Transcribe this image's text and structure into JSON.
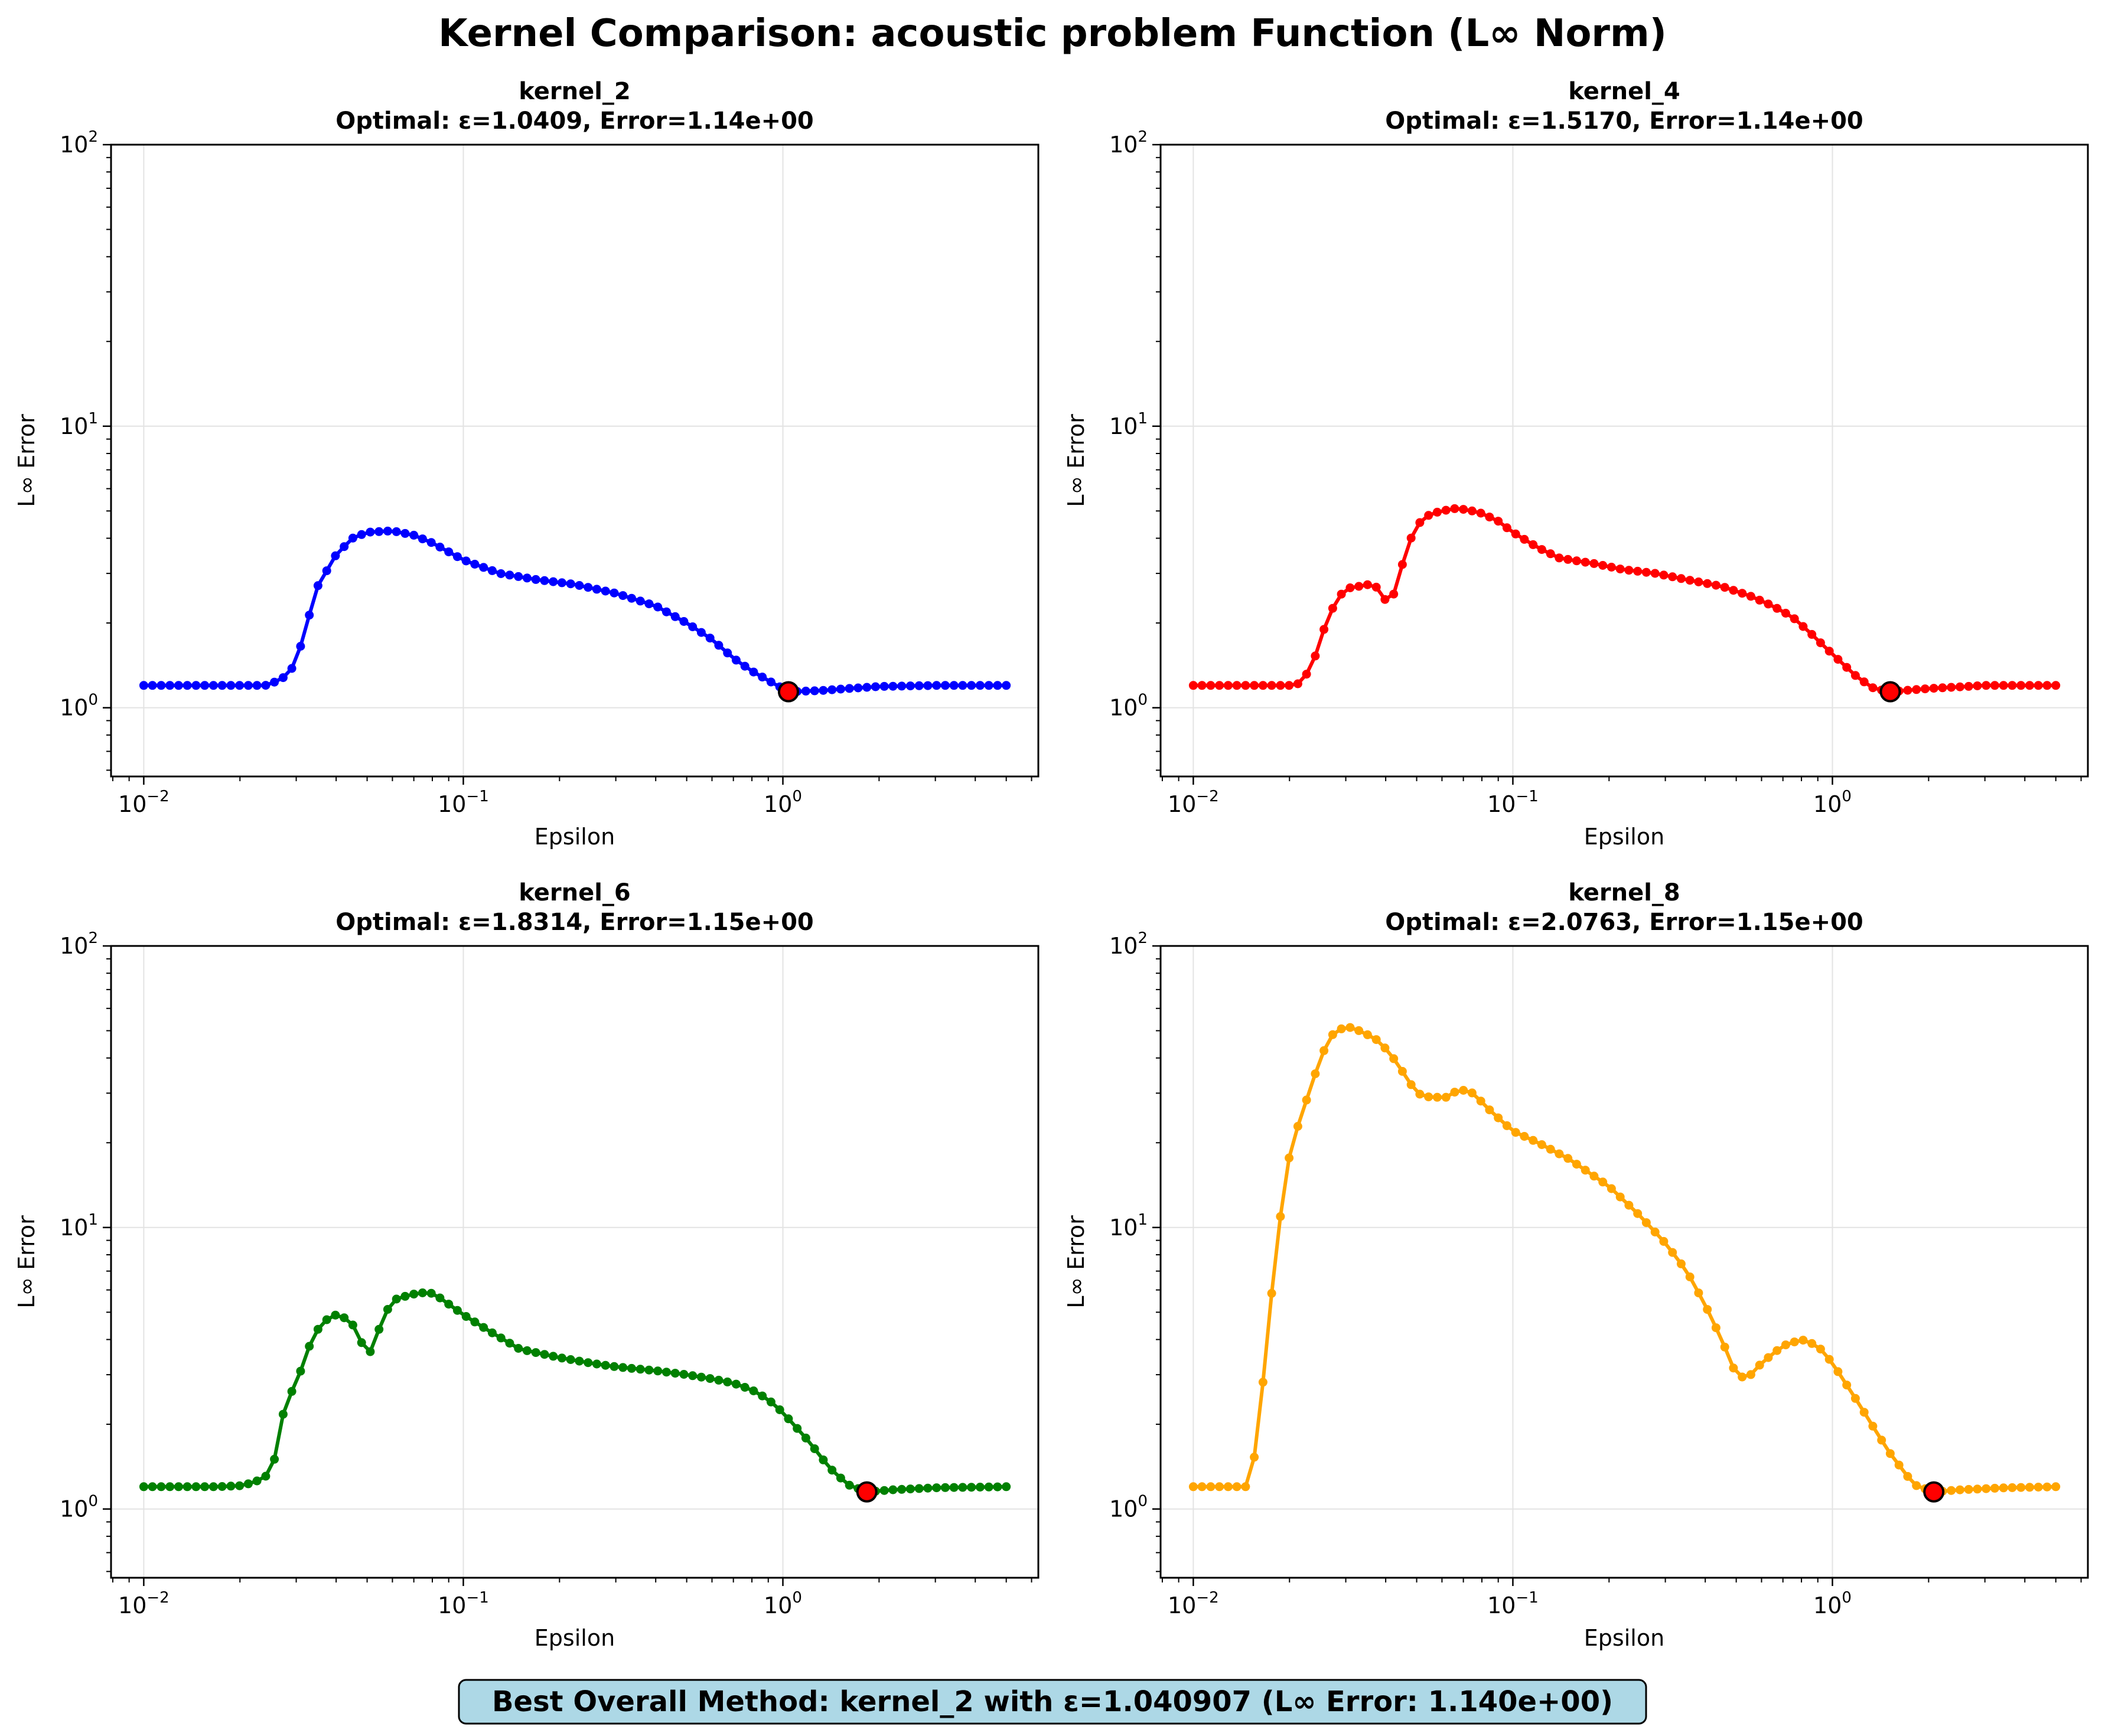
{
  "figure": {
    "title": "Kernel Comparison: acoustic problem Function (L∞ Norm)",
    "footer": "Best Overall Method: kernel_2 with ε=1.040907 (L∞ Error: 1.140e+00)",
    "colors": {
      "footer_bg": "#add8e6",
      "optimal_marker": "#ff0000",
      "grid": "#e3e3e3"
    }
  },
  "chart_data": [
    {
      "type": "line",
      "title": "kernel_2",
      "subtitle": "Optimal: ε=1.0409, Error=1.14e+00",
      "xlabel": "Epsilon",
      "ylabel": "L∞ Error",
      "xscale": "log",
      "yscale": "log",
      "xlim": [
        0.0079,
        6.3
      ],
      "ylim": [
        0.57,
        100
      ],
      "xticks": [
        0.01,
        0.1,
        1
      ],
      "xtick_labels": [
        [
          "10",
          "−2"
        ],
        [
          "10",
          "−1"
        ],
        [
          "10",
          "0"
        ]
      ],
      "yticks": [
        1,
        10,
        100
      ],
      "ytick_labels": [
        [
          "10",
          "0"
        ],
        [
          "10",
          "1"
        ],
        [
          "10",
          "2"
        ]
      ],
      "grid": true,
      "color": "#0000ff",
      "optimal": {
        "x": 1.0409,
        "y": 1.14
      },
      "series": [
        {
          "x_range": [
            0.01,
            5.0
          ],
          "x": [
            0.01,
            0.0124,
            0.0155,
            0.0193,
            0.024,
            0.026,
            0.028,
            0.03,
            0.032,
            0.035,
            0.04,
            0.045,
            0.05,
            0.06,
            0.07,
            0.08,
            0.1,
            0.13,
            0.17,
            0.22,
            0.3,
            0.4,
            0.5,
            0.6,
            0.7,
            0.8,
            0.9,
            1.0409,
            1.3,
            1.6,
            2.0,
            3.0,
            5.0
          ],
          "y": [
            1.2,
            1.2,
            1.2,
            1.2,
            1.2,
            1.24,
            1.3,
            1.45,
            1.9,
            2.7,
            3.5,
            4.0,
            4.2,
            4.25,
            4.1,
            3.85,
            3.35,
            3.0,
            2.85,
            2.75,
            2.55,
            2.3,
            2.0,
            1.75,
            1.5,
            1.35,
            1.25,
            1.14,
            1.15,
            1.17,
            1.19,
            1.2,
            1.2
          ]
        }
      ]
    },
    {
      "type": "line",
      "title": "kernel_4",
      "subtitle": "Optimal: ε=1.5170, Error=1.14e+00",
      "xlabel": "Epsilon",
      "ylabel": "L∞ Error",
      "xscale": "log",
      "yscale": "log",
      "xlim": [
        0.0079,
        6.3
      ],
      "ylim": [
        0.57,
        100
      ],
      "xticks": [
        0.01,
        0.1,
        1
      ],
      "xtick_labels": [
        [
          "10",
          "−2"
        ],
        [
          "10",
          "−1"
        ],
        [
          "10",
          "0"
        ]
      ],
      "yticks": [
        1,
        10,
        100
      ],
      "ytick_labels": [
        [
          "10",
          "0"
        ],
        [
          "10",
          "1"
        ],
        [
          "10",
          "2"
        ]
      ],
      "grid": true,
      "color": "#ff0000",
      "optimal": {
        "x": 1.517,
        "y": 1.14
      },
      "series": [
        {
          "x_range": [
            0.01,
            5.0
          ],
          "x": [
            0.01,
            0.013,
            0.016,
            0.02,
            0.0215,
            0.023,
            0.0245,
            0.026,
            0.028,
            0.03,
            0.033,
            0.036,
            0.038,
            0.04,
            0.042,
            0.045,
            0.048,
            0.052,
            0.056,
            0.06,
            0.066,
            0.072,
            0.08,
            0.09,
            0.1,
            0.12,
            0.14,
            0.18,
            0.22,
            0.28,
            0.35,
            0.45,
            0.55,
            0.65,
            0.75,
            0.85,
            1.0,
            1.2,
            1.35,
            1.517,
            2.0,
            3.0,
            5.0
          ],
          "y": [
            1.2,
            1.2,
            1.2,
            1.2,
            1.22,
            1.35,
            1.6,
            2.0,
            2.4,
            2.65,
            2.7,
            2.75,
            2.65,
            2.4,
            2.45,
            3.2,
            4.0,
            4.7,
            4.9,
            5.0,
            5.1,
            5.05,
            4.9,
            4.6,
            4.2,
            3.7,
            3.4,
            3.25,
            3.1,
            3.0,
            2.85,
            2.7,
            2.5,
            2.3,
            2.1,
            1.85,
            1.55,
            1.28,
            1.17,
            1.14,
            1.17,
            1.2,
            1.2
          ]
        }
      ]
    },
    {
      "type": "line",
      "title": "kernel_6",
      "subtitle": "Optimal: ε=1.8314, Error=1.15e+00",
      "xlabel": "Epsilon",
      "ylabel": "L∞ Error",
      "xscale": "log",
      "yscale": "log",
      "xlim": [
        0.0079,
        6.3
      ],
      "ylim": [
        0.57,
        100
      ],
      "xticks": [
        0.01,
        0.1,
        1
      ],
      "xtick_labels": [
        [
          "10",
          "−2"
        ],
        [
          "10",
          "−1"
        ],
        [
          "10",
          "0"
        ]
      ],
      "yticks": [
        1,
        10,
        100
      ],
      "ytick_labels": [
        [
          "10",
          "0"
        ],
        [
          "10",
          "1"
        ],
        [
          "10",
          "2"
        ]
      ],
      "grid": true,
      "color": "#008000",
      "optimal": {
        "x": 1.8314,
        "y": 1.15
      },
      "series": [
        {
          "x_range": [
            0.01,
            5.0
          ],
          "x": [
            0.01,
            0.013,
            0.017,
            0.02,
            0.022,
            0.024,
            0.0255,
            0.027,
            0.029,
            0.031,
            0.033,
            0.036,
            0.04,
            0.044,
            0.047,
            0.05,
            0.053,
            0.057,
            0.062,
            0.07,
            0.078,
            0.085,
            0.1,
            0.12,
            0.15,
            0.2,
            0.25,
            0.3,
            0.4,
            0.5,
            0.6,
            0.7,
            0.8,
            0.9,
            1.0,
            1.2,
            1.4,
            1.6,
            1.8314,
            2.2,
            3.0,
            5.0
          ],
          "y": [
            1.2,
            1.2,
            1.2,
            1.21,
            1.24,
            1.3,
            1.45,
            2.1,
            2.6,
            3.1,
            3.8,
            4.6,
            4.9,
            4.7,
            4.2,
            3.4,
            4.0,
            5.0,
            5.6,
            5.8,
            5.9,
            5.6,
            4.9,
            4.3,
            3.7,
            3.45,
            3.3,
            3.2,
            3.1,
            3.0,
            2.9,
            2.8,
            2.65,
            2.45,
            2.2,
            1.75,
            1.4,
            1.22,
            1.15,
            1.17,
            1.19,
            1.2
          ]
        }
      ]
    },
    {
      "type": "line",
      "title": "kernel_8",
      "subtitle": "Optimal: ε=2.0763, Error=1.15e+00",
      "xlabel": "Epsilon",
      "ylabel": "L∞ Error",
      "xscale": "log",
      "yscale": "log",
      "xlim": [
        0.0079,
        6.3
      ],
      "ylim": [
        0.57,
        100
      ],
      "xticks": [
        0.01,
        0.1,
        1
      ],
      "xtick_labels": [
        [
          "10",
          "−2"
        ],
        [
          "10",
          "−1"
        ],
        [
          "10",
          "0"
        ]
      ],
      "yticks": [
        1,
        10,
        100
      ],
      "ytick_labels": [
        [
          "10",
          "0"
        ],
        [
          "10",
          "1"
        ],
        [
          "10",
          "2"
        ]
      ],
      "grid": true,
      "color": "#ffa500",
      "optimal": {
        "x": 2.0763,
        "y": 1.15
      },
      "series": [
        {
          "x_range": [
            0.01,
            5.0
          ],
          "x": [
            0.01,
            0.012,
            0.014,
            0.015,
            0.016,
            0.017,
            0.018,
            0.019,
            0.02,
            0.0215,
            0.023,
            0.025,
            0.027,
            0.03,
            0.033,
            0.037,
            0.041,
            0.045,
            0.05,
            0.055,
            0.062,
            0.068,
            0.075,
            0.085,
            0.1,
            0.12,
            0.15,
            0.2,
            0.25,
            0.3,
            0.35,
            0.4,
            0.45,
            0.5,
            0.54,
            0.6,
            0.7,
            0.8,
            0.9,
            1.0,
            1.2,
            1.5,
            1.8,
            2.0763,
            2.5,
            3.5,
            5.0
          ],
          "y": [
            1.2,
            1.2,
            1.2,
            1.2,
            1.9,
            4.0,
            7.5,
            12.5,
            18.0,
            24.0,
            30.0,
            40.0,
            48.0,
            52.0,
            50.0,
            47.0,
            42.0,
            36.0,
            30.0,
            29.0,
            29.0,
            31.0,
            30.0,
            26.0,
            22.0,
            20.0,
            17.5,
            14.0,
            11.0,
            8.8,
            7.0,
            5.3,
            4.0,
            3.0,
            2.9,
            3.3,
            3.8,
            4.0,
            3.8,
            3.3,
            2.4,
            1.6,
            1.22,
            1.15,
            1.17,
            1.19,
            1.2
          ]
        }
      ]
    }
  ]
}
